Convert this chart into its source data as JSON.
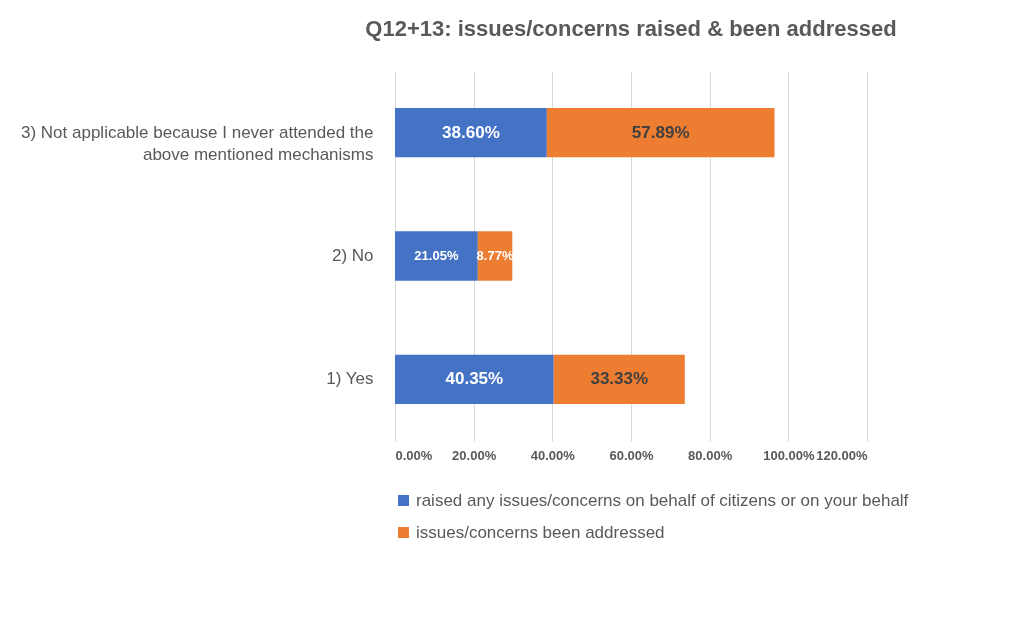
{
  "chart_data": {
    "type": "bar",
    "orientation": "horizontal",
    "stacked": true,
    "title": "Q12+13: issues/concerns raised & been addressed",
    "categories": [
      "3) Not applicable because I never attended the above mentioned mechanisms",
      "2) No",
      "1) Yes"
    ],
    "series": [
      {
        "name": "raised any issues/concerns on behalf of citizens or on your behalf",
        "color": "#4472c4",
        "values": [
          38.6,
          21.05,
          40.35
        ],
        "value_labels": [
          "38.60%",
          "21.05%",
          "40.35%"
        ]
      },
      {
        "name": "issues/concerns been addressed",
        "color": "#ed7d31",
        "values": [
          57.89,
          8.77,
          33.33
        ],
        "value_labels": [
          "57.89%",
          "8.77%",
          "33.33%"
        ]
      }
    ],
    "xlim": [
      0,
      120
    ],
    "xticks": [
      {
        "value": 0,
        "label": "0.00%"
      },
      {
        "value": 20,
        "label": "20.00%"
      },
      {
        "value": 40,
        "label": "40.00%"
      },
      {
        "value": 60,
        "label": "60.00%"
      },
      {
        "value": 80,
        "label": "80.00%"
      },
      {
        "value": 100,
        "label": "100.00%"
      },
      {
        "value": 120,
        "label": "120.00%"
      }
    ],
    "grid": "x",
    "legend": "bottom"
  }
}
